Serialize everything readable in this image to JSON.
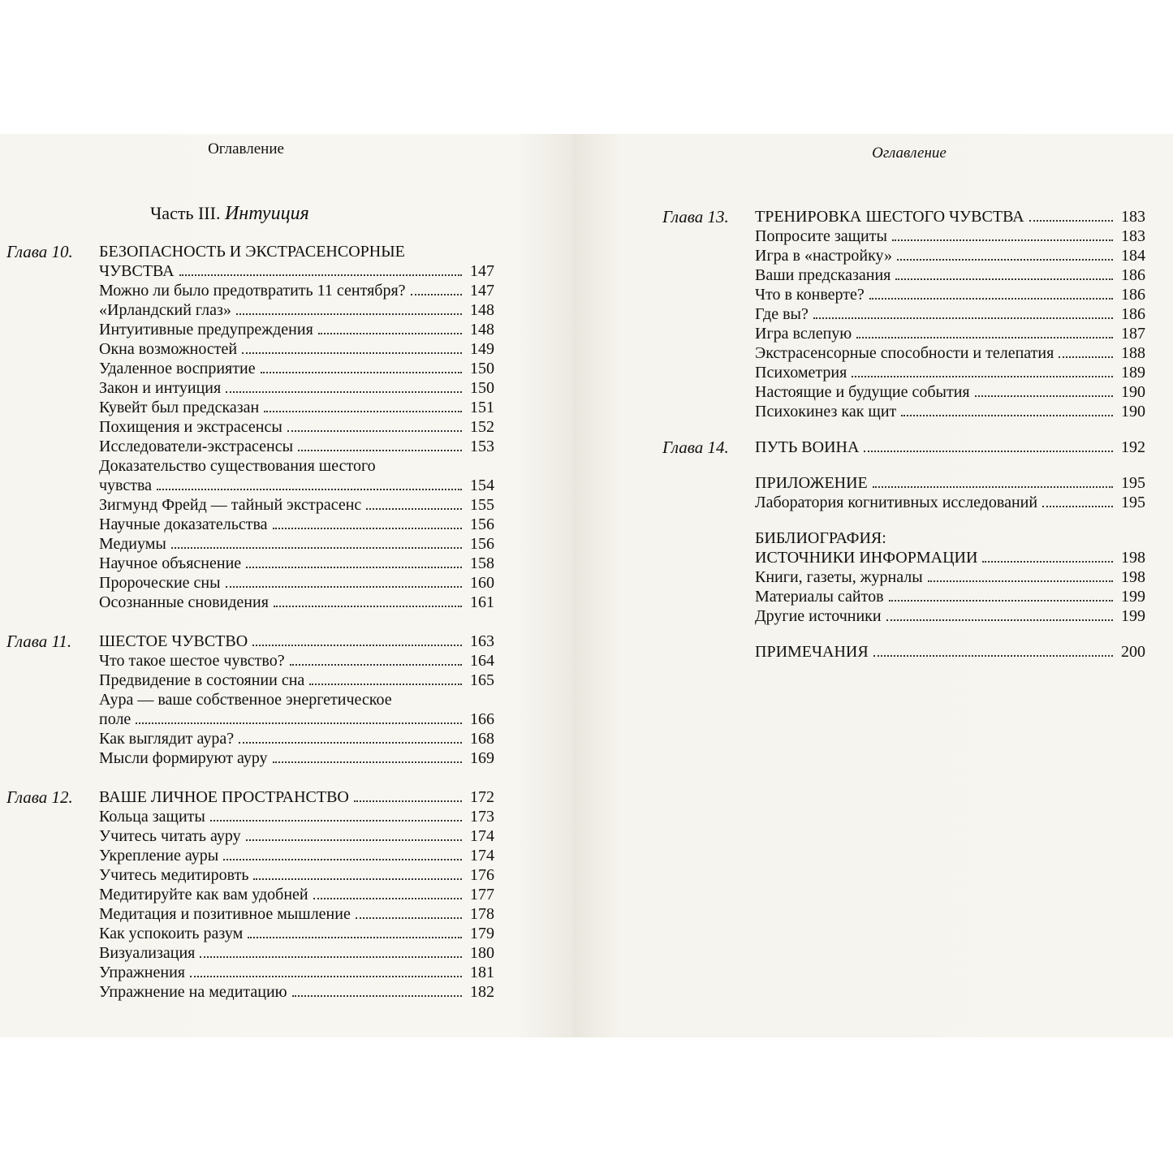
{
  "left": {
    "header": "Оглавление",
    "part": {
      "label": "Часть III.",
      "title": "Интуиция"
    },
    "chapters": [
      {
        "label": "Глава 10.",
        "title": [
          "БЕЗОПАСНОСТЬ И ЭКСТРАСЕНСОРНЫЕ",
          "ЧУВСТВА"
        ],
        "page": 147,
        "items": [
          {
            "title": "Можно ли было предотвратить 11 сентября?",
            "page": 147
          },
          {
            "title": "«Ирландский глаз»",
            "page": 148
          },
          {
            "title": "Интуитивные предупреждения",
            "page": 148
          },
          {
            "title": "Окна возможностей",
            "page": 149
          },
          {
            "title": "Удаленное восприятие",
            "page": 150
          },
          {
            "title": "Закон и интуиция",
            "page": 150
          },
          {
            "title": "Кувейт был предсказан",
            "page": 151
          },
          {
            "title": "Похищения и экстрасенсы",
            "page": 152
          },
          {
            "title": "Исследователи-экстрасенсы",
            "page": 153
          },
          {
            "title": [
              "Доказательство существования шестого",
              "чувства"
            ],
            "page": 154
          },
          {
            "title": "Зигмунд Фрейд — тайный экстрасенс",
            "page": 155
          },
          {
            "title": "Научные доказательства",
            "page": 156
          },
          {
            "title": "Медиумы",
            "page": 156
          },
          {
            "title": "Научное объяснение",
            "page": 158
          },
          {
            "title": "Пророческие сны",
            "page": 160
          },
          {
            "title": "Осознанные сновидения",
            "page": 161
          }
        ]
      },
      {
        "label": "Глава 11.",
        "title": [
          "ШЕСТОЕ ЧУВСТВО"
        ],
        "page": 163,
        "items": [
          {
            "title": "Что такое шестое чувство?",
            "page": 164
          },
          {
            "title": "Предвидение в состоянии сна",
            "page": 165
          },
          {
            "title": [
              "Аура — ваше собственное энергетическое",
              "поле"
            ],
            "page": 166
          },
          {
            "title": "Как выглядит аура?",
            "page": 168
          },
          {
            "title": "Мысли формируют ауру",
            "page": 169
          }
        ]
      },
      {
        "label": "Глава 12.",
        "title": [
          "ВАШЕ ЛИЧНОЕ ПРОСТРАНСТВО"
        ],
        "page": 172,
        "items": [
          {
            "title": "Кольца защиты",
            "page": 173
          },
          {
            "title": "Учитесь читать ауру",
            "page": 174
          },
          {
            "title": "Укрепление ауры",
            "page": 174
          },
          {
            "title": "Учитесь медитировть",
            "page": 176
          },
          {
            "title": "Медитируйте как вам удобней",
            "page": 177
          },
          {
            "title": "Медитация и позитивное мышление",
            "page": 178
          },
          {
            "title": "Как успокоить разум",
            "page": 179
          },
          {
            "title": "Визуализация",
            "page": 180
          },
          {
            "title": "Упражнения",
            "page": 181
          },
          {
            "title": "Упражнение на медитацию",
            "page": 182
          }
        ]
      }
    ]
  },
  "right": {
    "header": "Оглавление",
    "chapters": [
      {
        "label": "Глава 13.",
        "title": [
          "ТРЕНИРОВКА ШЕСТОГО ЧУВСТВА"
        ],
        "page": 183,
        "items": [
          {
            "title": "Попросите защиты",
            "page": 183
          },
          {
            "title": "Игра в «настройку»",
            "page": 184
          },
          {
            "title": "Ваши предсказания",
            "page": 186
          },
          {
            "title": "Что в конверте?",
            "page": 186
          },
          {
            "title": "Где вы?",
            "page": 186
          },
          {
            "title": "Игра вслепую",
            "page": 187
          },
          {
            "title": "Экстрасенсорные способности и телепатия",
            "page": 188
          },
          {
            "title": "Психометрия",
            "page": 189
          },
          {
            "title": "Настоящие и будущие события",
            "page": 190
          },
          {
            "title": "Психокинез как щит",
            "page": 190
          }
        ]
      },
      {
        "label": "Глава 14.",
        "title": [
          "ПУТЬ ВОИНА"
        ],
        "page": 192,
        "items": []
      },
      {
        "title": [
          "ПРИЛОЖЕНИЕ"
        ],
        "page": 195,
        "items": [
          {
            "title": "Лаборатория когнитивных исследований",
            "page": 195
          }
        ]
      },
      {
        "title": [
          "БИБЛИОГРАФИЯ:",
          "ИСТОЧНИКИ ИНФОРМАЦИИ"
        ],
        "page": 198,
        "items": [
          {
            "title": "Книги, газеты, журналы",
            "page": 198
          },
          {
            "title": "Материалы сайтов",
            "page": 199
          },
          {
            "title": "Другие источники",
            "page": 199
          }
        ]
      },
      {
        "title": [
          "ПРИМЕЧАНИЯ"
        ],
        "page": 200,
        "items": []
      }
    ]
  }
}
